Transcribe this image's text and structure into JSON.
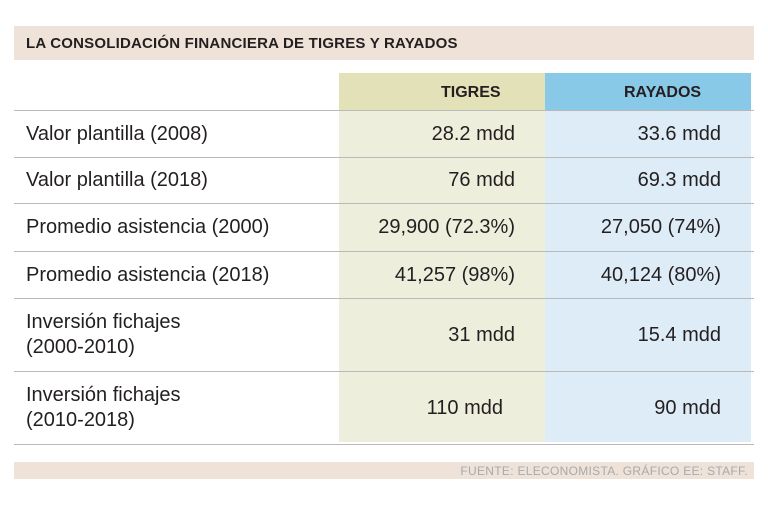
{
  "title": "LA CONSOLIDACIÓN FINANCIERA DE TIGRES Y RAYADOS",
  "table": {
    "columns": [
      "TIGRES",
      "RAYADOS"
    ],
    "rows": [
      {
        "label": "Valor plantilla (2008)",
        "tigres": "28.2 mdd",
        "rayados": "33.6 mdd"
      },
      {
        "label": "Valor plantilla (2018)",
        "tigres": "76 mdd",
        "rayados": "69.3 mdd"
      },
      {
        "label": "Promedio asistencia (2000)",
        "tigres": "29,900 (72.3%)",
        "rayados": "27,050 (74%)"
      },
      {
        "label": "Promedio asistencia (2018)",
        "tigres": "41,257 (98%)",
        "rayados": "40,124 (80%)"
      },
      {
        "label_line1": "Inversión fichajes",
        "label_line2": "(2000-2010)",
        "tigres": "31 mdd",
        "rayados": "15.4 mdd"
      },
      {
        "label_line1": "Inversión fichajes",
        "label_line2": "(2010-2018)",
        "tigres": "110 mdd",
        "rayados": "90 mdd"
      }
    ]
  },
  "footer": "FUENTE: ELECONOMISTA. GRÁFICO EE: STAFF.",
  "colors": {
    "title_bg": "#efe3d9",
    "tigres_header": "#e3e1b8",
    "tigres_column": "#eeeedc",
    "rayados_header": "#89c9e8",
    "rayados_column": "#ddecf6"
  }
}
